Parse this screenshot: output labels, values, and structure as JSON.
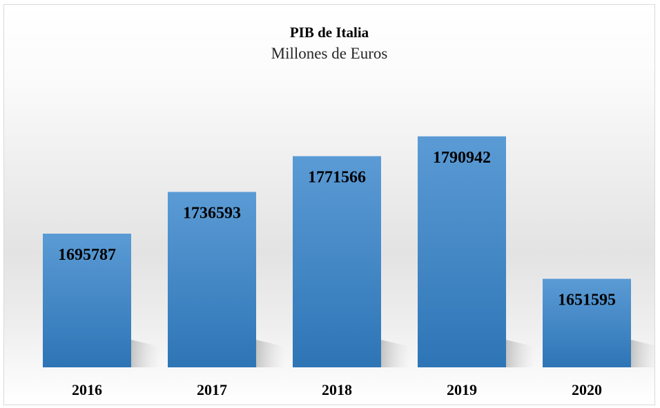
{
  "chart_data": {
    "type": "bar",
    "title": "PIB de Italia",
    "subtitle": "Millones de Euros",
    "categories": [
      "2016",
      "2017",
      "2018",
      "2019",
      "2020"
    ],
    "values": [
      1695787,
      1736593,
      1771566,
      1790942,
      1651595
    ],
    "data_labels": [
      "1695787",
      "1736593",
      "1771566",
      "1790942",
      "1651595"
    ],
    "xlabel": "",
    "ylabel": "",
    "ylim": [
      1565000,
      1805000
    ],
    "grid": false,
    "legend": "none",
    "bar_color_top": "#5b9bd5",
    "bar_color_bottom": "#2e75b6"
  }
}
